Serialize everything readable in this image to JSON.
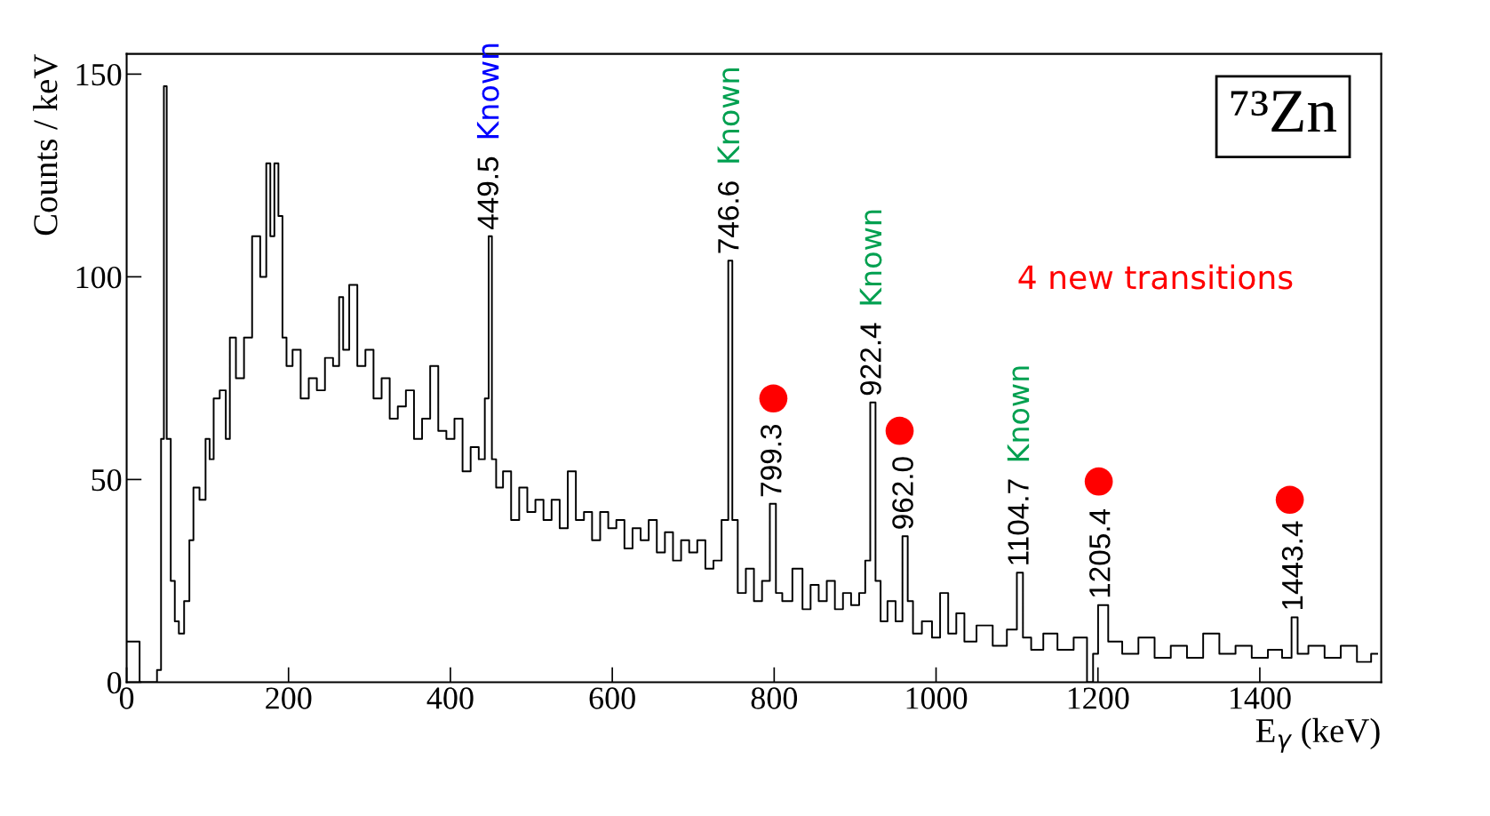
{
  "chart_data": {
    "type": "step",
    "xlabel": "E$_{γ}$ (keV)",
    "ylabel": "Counts / keV",
    "xlim": [
      0,
      1550
    ],
    "ylim": [
      0,
      155
    ],
    "xticks": [
      0,
      200,
      400,
      600,
      800,
      1000,
      1200,
      1400
    ],
    "yticks": [
      0,
      50,
      100,
      150
    ],
    "grid": false,
    "legend": false,
    "series": [
      {
        "type": "step",
        "color": "#000000",
        "marker": "none",
        "line_style": "solid",
        "x": [
          0,
          15,
          17,
          35,
          40,
          45,
          47,
          52,
          57,
          62,
          67,
          75,
          80,
          85,
          95,
          100,
          105,
          110,
          120,
          125,
          130,
          140,
          150,
          160,
          170,
          175,
          180,
          185,
          190,
          195,
          200,
          210,
          220,
          230,
          240,
          250,
          260,
          265,
          270,
          280,
          290,
          300,
          310,
          320,
          330,
          340,
          350,
          360,
          370,
          380,
          390,
          400,
          410,
          420,
          430,
          440,
          445,
          449.5,
          453,
          460,
          470,
          480,
          490,
          500,
          510,
          520,
          530,
          540,
          550,
          560,
          570,
          580,
          590,
          600,
          610,
          620,
          630,
          640,
          650,
          660,
          670,
          680,
          690,
          700,
          710,
          720,
          730,
          740,
          746.6,
          750,
          760,
          770,
          780,
          790,
          799.3,
          805,
          815,
          830,
          840,
          850,
          860,
          870,
          880,
          890,
          900,
          910,
          915,
          922.4,
          928,
          935,
          945,
          955,
          962,
          968,
          975,
          990,
          1000,
          1010,
          1020,
          1030,
          1040,
          1060,
          1080,
          1095,
          1104.7,
          1110,
          1125,
          1140,
          1160,
          1180,
          1193,
          1195,
          1205.4,
          1220,
          1240,
          1260,
          1280,
          1300,
          1320,
          1340,
          1360,
          1380,
          1400,
          1420,
          1435,
          1443.4,
          1450,
          1470,
          1490,
          1510,
          1530,
          1545
        ],
        "values": [
          10,
          10,
          0,
          0,
          3,
          60,
          147,
          60,
          25,
          15,
          12,
          20,
          35,
          48,
          45,
          60,
          55,
          70,
          72,
          60,
          85,
          75,
          85,
          110,
          100,
          128,
          110,
          128,
          115,
          85,
          78,
          82,
          70,
          75,
          72,
          80,
          78,
          95,
          82,
          98,
          78,
          82,
          70,
          75,
          65,
          68,
          72,
          60,
          65,
          78,
          62,
          60,
          65,
          52,
          58,
          55,
          70,
          110,
          55,
          48,
          52,
          40,
          48,
          42,
          45,
          40,
          45,
          38,
          52,
          40,
          42,
          35,
          42,
          38,
          40,
          33,
          38,
          35,
          40,
          32,
          37,
          30,
          35,
          32,
          35,
          28,
          30,
          40,
          104,
          40,
          22,
          28,
          20,
          25,
          44,
          22,
          20,
          28,
          18,
          24,
          20,
          25,
          18,
          22,
          19,
          22,
          30,
          69,
          25,
          15,
          20,
          15,
          36,
          20,
          12,
          15,
          11,
          22,
          12,
          17,
          10,
          14,
          9,
          13,
          27,
          11,
          8,
          12,
          8,
          11,
          0,
          7,
          19,
          10,
          7,
          11,
          6,
          9,
          6,
          12,
          7,
          9,
          6,
          8,
          6,
          16,
          7,
          9,
          6,
          9,
          5,
          7
        ]
      },
      {
        "type": "scatter",
        "color": "#ff0000",
        "marker": "circle",
        "x": [
          799,
          955,
          1201,
          1437
        ],
        "values": [
          70,
          62,
          49.5,
          45
        ]
      }
    ],
    "annotations": [
      "⁷³Zn",
      "4 new transitions",
      {
        "text": "449.5",
        "x": 449.5,
        "y": 110
      },
      {
        "text": "746.6",
        "x": 746.6,
        "y": 104
      },
      {
        "text": "799.3",
        "x": 799.3,
        "y": 44
      },
      {
        "text": "922.4",
        "x": 922.4,
        "y": 69
      },
      {
        "text": "962.0",
        "x": 962,
        "y": 36
      },
      {
        "text": "1104.7",
        "x": 1104.7,
        "y": 27
      },
      {
        "text": "1205.4",
        "x": 1205.4,
        "y": 19
      },
      {
        "text": "1443.4",
        "x": 1443.4,
        "y": 16
      },
      "Known",
      "Known",
      "Known",
      "Known"
    ]
  }
}
